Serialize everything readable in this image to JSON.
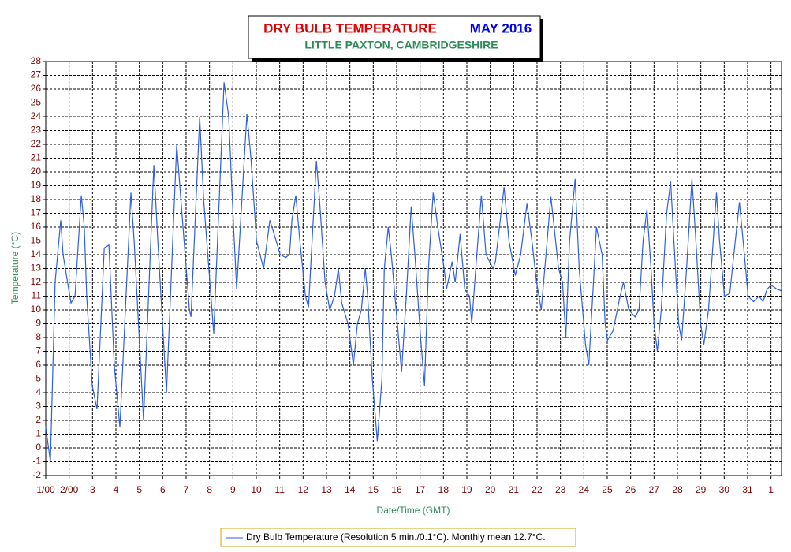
{
  "chart_data": {
    "type": "line",
    "title": "DRY BULB TEMPERATURE",
    "title_period": "MAY 2016",
    "subtitle": "LITTLE PAXTON, CAMBRIDGESHIRE",
    "x_label": "Date/Time (GMT)",
    "y_label": "Temperature (°C)",
    "xlim": [
      1,
      32.45
    ],
    "ylim": [
      -2,
      28
    ],
    "xticks": [
      {
        "value": 1,
        "label": "1/00"
      },
      {
        "value": 2,
        "label": "2/00"
      },
      3,
      4,
      5,
      6,
      7,
      8,
      9,
      10,
      11,
      12,
      13,
      14,
      15,
      16,
      17,
      18,
      19,
      20,
      21,
      22,
      23,
      24,
      25,
      26,
      27,
      28,
      29,
      30,
      31,
      {
        "value": 32,
        "label": "1"
      }
    ],
    "yticks": [
      -2,
      -1,
      0,
      1,
      2,
      3,
      4,
      5,
      6,
      7,
      8,
      9,
      10,
      11,
      12,
      13,
      14,
      15,
      16,
      17,
      18,
      19,
      20,
      21,
      22,
      23,
      24,
      25,
      26,
      27,
      28
    ],
    "grid": true,
    "legend": "bottom",
    "x": [
      1.0,
      1.2,
      1.4,
      1.64,
      1.74,
      2.08,
      2.25,
      2.52,
      2.65,
      2.75,
      2.99,
      3.19,
      3.5,
      3.7,
      3.93,
      4.17,
      4.64,
      4.78,
      5.18,
      5.62,
      5.79,
      6.16,
      6.6,
      6.73,
      7.14,
      7.21,
      7.58,
      7.75,
      8.18,
      8.62,
      8.82,
      9.03,
      9.16,
      9.6,
      9.77,
      10.01,
      10.31,
      10.58,
      10.85,
      11.02,
      11.25,
      11.42,
      11.52,
      11.69,
      11.86,
      12.1,
      12.23,
      12.57,
      12.7,
      12.94,
      13.14,
      13.34,
      13.51,
      13.65,
      13.92,
      14.15,
      14.32,
      14.49,
      14.66,
      14.76,
      14.96,
      15.17,
      15.37,
      15.47,
      15.64,
      15.77,
      16.08,
      16.21,
      16.41,
      16.62,
      16.78,
      17.02,
      17.19,
      17.36,
      17.56,
      17.76,
      18.03,
      18.13,
      18.37,
      18.5,
      18.71,
      18.91,
      19.11,
      19.21,
      19.38,
      19.62,
      19.82,
      20.12,
      20.22,
      20.59,
      20.8,
      21.07,
      21.3,
      21.57,
      21.78,
      21.98,
      22.18,
      22.38,
      22.59,
      22.92,
      23.09,
      23.23,
      23.39,
      23.63,
      23.8,
      24.07,
      24.21,
      24.41,
      24.54,
      24.78,
      24.91,
      25.01,
      25.25,
      25.55,
      25.69,
      25.92,
      26.19,
      26.36,
      26.53,
      26.7,
      26.87,
      27.0,
      27.14,
      27.31,
      27.54,
      27.71,
      27.85,
      28.05,
      28.18,
      28.39,
      28.62,
      28.79,
      28.99,
      29.13,
      29.33,
      29.67,
      29.8,
      30.01,
      30.24,
      30.41,
      30.65,
      30.81,
      31.02,
      31.25,
      31.49,
      31.66,
      31.83,
      32.0,
      32.26,
      32.43
    ],
    "series": [
      {
        "name": "Dry Bulb Temperature (Resolution 5 min./0.1°C). Monthly mean 12.7°C.",
        "color": "#2f5fe0",
        "values": [
          1.5,
          -1,
          12,
          16.5,
          14,
          10.5,
          11,
          18.3,
          16,
          11,
          4.5,
          2.8,
          14.5,
          14.7,
          6,
          1.5,
          18.5,
          15,
          2,
          20.5,
          15,
          4,
          22,
          19,
          10,
          9.5,
          24,
          18,
          8.3,
          26.5,
          24,
          16,
          11.5,
          24.2,
          21,
          15,
          13,
          16.5,
          15,
          14,
          13.8,
          14,
          16.5,
          18.3,
          15,
          11,
          10.2,
          20.8,
          18,
          12,
          10,
          11,
          13,
          10.5,
          9,
          6,
          9,
          10,
          13,
          11,
          5,
          0.5,
          5,
          13,
          16,
          14,
          8,
          5.5,
          11,
          17.5,
          14,
          8,
          4.5,
          13,
          18.5,
          16,
          13,
          11.5,
          13.5,
          12,
          15.5,
          11.5,
          11,
          9,
          13,
          18.3,
          14,
          13,
          13.5,
          18.9,
          15,
          12.5,
          14,
          17.7,
          15,
          12,
          10,
          14,
          18.2,
          13,
          12,
          8,
          15,
          19.5,
          13,
          7.5,
          6,
          12,
          16,
          14,
          9,
          7.8,
          8.5,
          11,
          12,
          10,
          9.5,
          10,
          15,
          17.3,
          13,
          9,
          7,
          10,
          17,
          19.3,
          15,
          9,
          7.8,
          13,
          19.5,
          15,
          9,
          7.5,
          10,
          18.5,
          15,
          11,
          11.2,
          14,
          17.8,
          15,
          11,
          10.6,
          11,
          10.6,
          11.5,
          11.8,
          11.5,
          11.4
        ]
      }
    ]
  }
}
